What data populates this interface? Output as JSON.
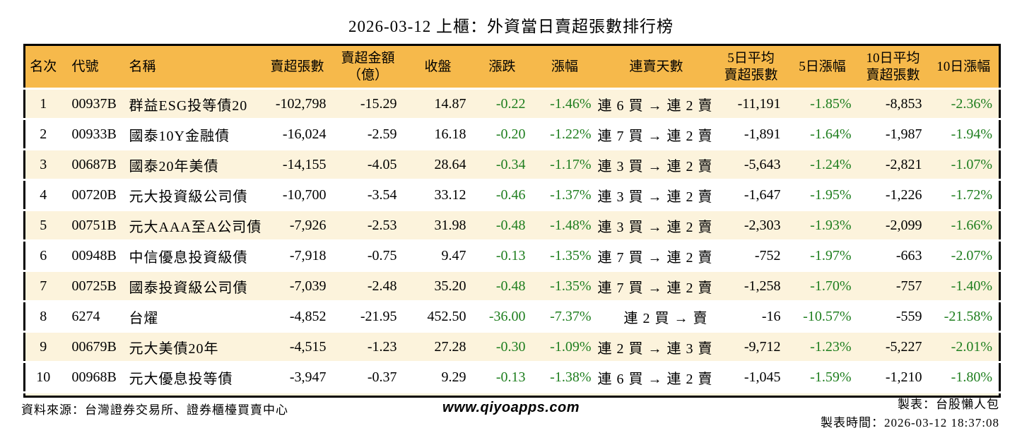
{
  "title": "2026-03-12 上櫃：外資當日賣超張數排行榜",
  "colors": {
    "header_bg": "#F6B94B",
    "stripe_bg": "#FCF3DC",
    "down_green": "#1E7E1E",
    "border": "#000000"
  },
  "table": {
    "headers": {
      "rank": "名次",
      "code": "代號",
      "name": "名稱",
      "sell_volume": "賣超張數",
      "sell_amount": "賣超金額\n（億）",
      "close": "收盤",
      "change": "漲跌",
      "change_pct": "漲幅",
      "streak": "連賣天數",
      "avg5": "5日平均\n賣超張數",
      "pct5": "5日漲幅",
      "avg10": "10日平均\n賣超張數",
      "pct10": "10日漲幅"
    },
    "rows": [
      {
        "rank": "1",
        "code": "00937B",
        "name": "群益ESG投等債20",
        "sell_volume": "-102,798",
        "sell_amount": "-15.29",
        "close": "14.87",
        "change": "-0.22",
        "change_pct": "-1.46%",
        "streak": "連 6 買 → 連 2 賣",
        "avg5": "-11,191",
        "pct5": "-1.85%",
        "avg10": "-8,853",
        "pct10": "-2.36%"
      },
      {
        "rank": "2",
        "code": "00933B",
        "name": "國泰10Y金融債",
        "sell_volume": "-16,024",
        "sell_amount": "-2.59",
        "close": "16.18",
        "change": "-0.20",
        "change_pct": "-1.22%",
        "streak": "連 7 買 → 連 2 賣",
        "avg5": "-1,891",
        "pct5": "-1.64%",
        "avg10": "-1,987",
        "pct10": "-1.94%"
      },
      {
        "rank": "3",
        "code": "00687B",
        "name": "國泰20年美債",
        "sell_volume": "-14,155",
        "sell_amount": "-4.05",
        "close": "28.64",
        "change": "-0.34",
        "change_pct": "-1.17%",
        "streak": "連 3 買 → 連 2 賣",
        "avg5": "-5,643",
        "pct5": "-1.24%",
        "avg10": "-2,821",
        "pct10": "-1.07%"
      },
      {
        "rank": "4",
        "code": "00720B",
        "name": "元大投資級公司債",
        "sell_volume": "-10,700",
        "sell_amount": "-3.54",
        "close": "33.12",
        "change": "-0.46",
        "change_pct": "-1.37%",
        "streak": "連 3 買 → 連 2 賣",
        "avg5": "-1,647",
        "pct5": "-1.95%",
        "avg10": "-1,226",
        "pct10": "-1.72%"
      },
      {
        "rank": "5",
        "code": "00751B",
        "name": "元大AAA至A公司債",
        "sell_volume": "-7,926",
        "sell_amount": "-2.53",
        "close": "31.98",
        "change": "-0.48",
        "change_pct": "-1.48%",
        "streak": "連 3 買 → 連 2 賣",
        "avg5": "-2,303",
        "pct5": "-1.93%",
        "avg10": "-2,099",
        "pct10": "-1.66%"
      },
      {
        "rank": "6",
        "code": "00948B",
        "name": "中信優息投資級債",
        "sell_volume": "-7,918",
        "sell_amount": "-0.75",
        "close": "9.47",
        "change": "-0.13",
        "change_pct": "-1.35%",
        "streak": "連 7 買 → 連 2 賣",
        "avg5": "-752",
        "pct5": "-1.97%",
        "avg10": "-663",
        "pct10": "-2.07%"
      },
      {
        "rank": "7",
        "code": "00725B",
        "name": "國泰投資級公司債",
        "sell_volume": "-7,039",
        "sell_amount": "-2.48",
        "close": "35.20",
        "change": "-0.48",
        "change_pct": "-1.35%",
        "streak": "連 7 買 → 連 2 賣",
        "avg5": "-1,258",
        "pct5": "-1.70%",
        "avg10": "-757",
        "pct10": "-1.40%"
      },
      {
        "rank": "8",
        "code": "6274",
        "name": "台燿",
        "sell_volume": "-4,852",
        "sell_amount": "-21.95",
        "close": "452.50",
        "change": "-36.00",
        "change_pct": "-7.37%",
        "streak": "連 2 買 → 賣",
        "avg5": "-16",
        "pct5": "-10.57%",
        "avg10": "-559",
        "pct10": "-21.58%"
      },
      {
        "rank": "9",
        "code": "00679B",
        "name": "元大美債20年",
        "sell_volume": "-4,515",
        "sell_amount": "-1.23",
        "close": "27.28",
        "change": "-0.30",
        "change_pct": "-1.09%",
        "streak": "連 2 買 → 連 3 賣",
        "avg5": "-9,712",
        "pct5": "-1.23%",
        "avg10": "-5,227",
        "pct10": "-2.01%"
      },
      {
        "rank": "10",
        "code": "00968B",
        "name": "元大優息投等債",
        "sell_volume": "-3,947",
        "sell_amount": "-0.37",
        "close": "9.29",
        "change": "-0.13",
        "change_pct": "-1.38%",
        "streak": "連 6 買 → 連 2 賣",
        "avg5": "-1,045",
        "pct5": "-1.59%",
        "avg10": "-1,210",
        "pct10": "-1.80%"
      }
    ]
  },
  "footer": {
    "source": "資料來源：台灣證券交易所、證券櫃檯買賣中心",
    "website": "www.qiyoapps.com",
    "maker": "製表：台股懶人包",
    "made_at": "製表時間：2026-03-12 18:37:08"
  }
}
